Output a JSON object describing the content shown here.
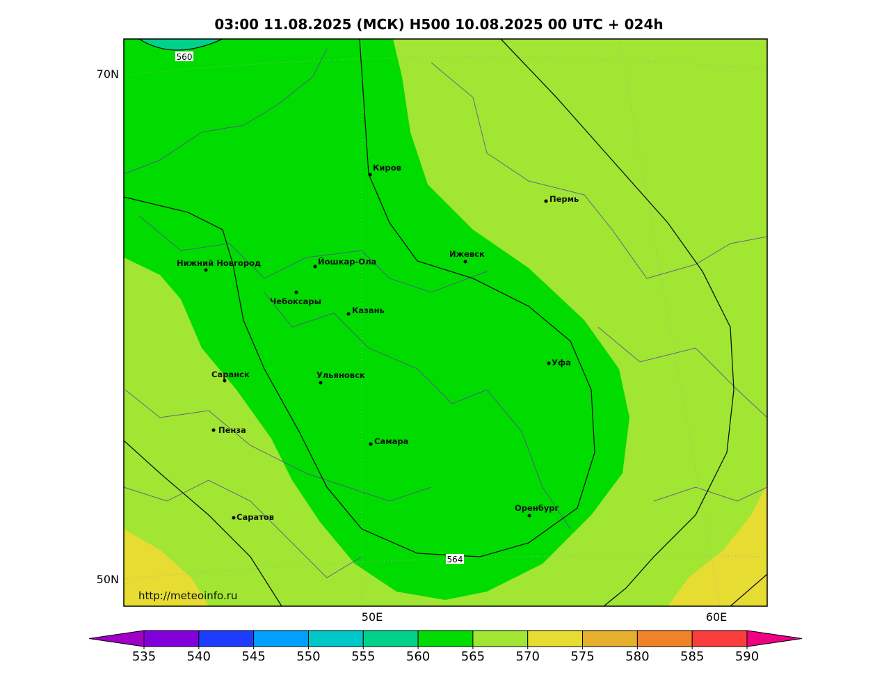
{
  "map": {
    "title": "03:00 11.08.2025 (МСК) H500  10.08.2025 00 UTC + 024h",
    "lat_labels": [
      "70N",
      "50N"
    ],
    "lon_labels": [
      "50E",
      "60E"
    ],
    "contour_labels": [
      "560",
      "564"
    ],
    "cities": [
      "Киров",
      "Пермь",
      "Нижний Новгород",
      "Йошкар-Ола",
      "Ижевск",
      "Чебоксары",
      "Казань",
      "Уфа",
      "Саранск",
      "Ульяновск",
      "Пенза",
      "Самара",
      "Оренбург",
      "Саратов"
    ],
    "url": "http://meteoinfo.ru",
    "colorbar": {
      "ticks": [
        535,
        540,
        545,
        550,
        555,
        560,
        565,
        570,
        575,
        580,
        585,
        590
      ],
      "under_color": "#a000c8",
      "over_color": "#f00082",
      "colors": [
        "#8200dc",
        "#1e3cff",
        "#00a0ff",
        "#00c8c8",
        "#00d28c",
        "#00dc00",
        "#a0e632",
        "#e6dc32",
        "#e6af2d",
        "#f08228",
        "#fa3c3c"
      ]
    }
  }
}
